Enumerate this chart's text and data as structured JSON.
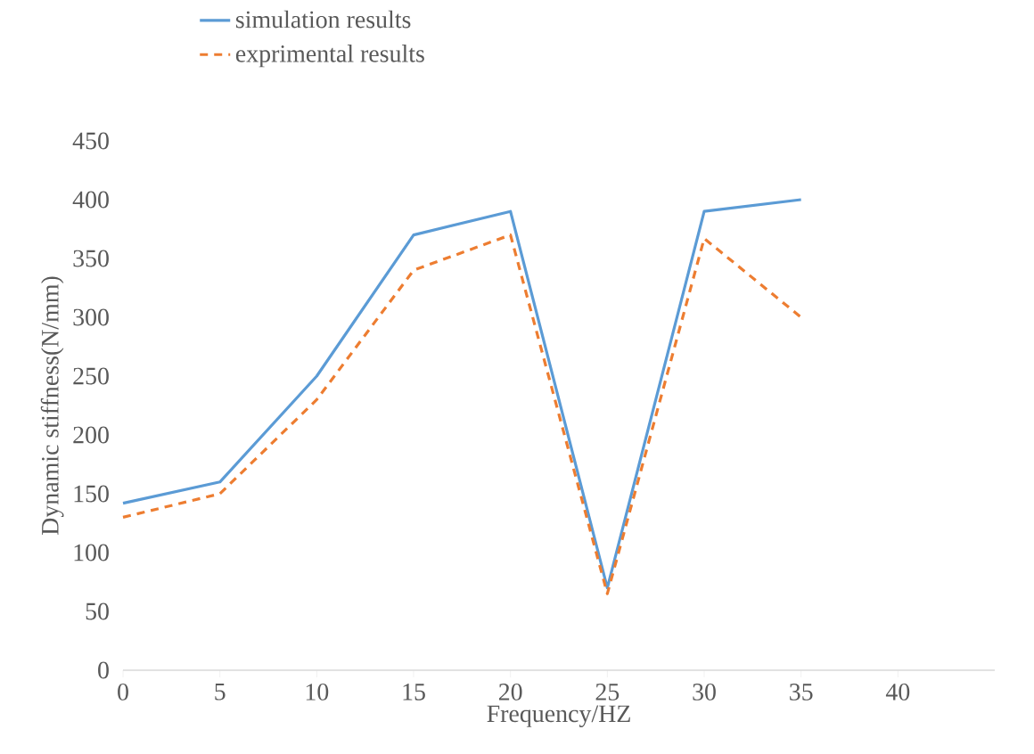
{
  "chart_data": {
    "type": "line",
    "xlabel": "Frequency/HZ",
    "ylabel": "Dynamic stiffness(N/mm)",
    "x": [
      0,
      5,
      10,
      15,
      20,
      25,
      30,
      35
    ],
    "series": [
      {
        "name": "simulation results",
        "color": "#5b9bd5",
        "line_style": "solid",
        "values": [
          142,
          160,
          250,
          370,
          390,
          70,
          390,
          400
        ]
      },
      {
        "name": "exprimental results",
        "color": "#ed7d31",
        "line_style": "dashed",
        "values": [
          130,
          150,
          230,
          340,
          370,
          65,
          367,
          300
        ]
      }
    ],
    "xlim": [
      0,
      45
    ],
    "xticks": [
      0,
      5,
      10,
      15,
      20,
      25,
      30,
      35,
      40
    ],
    "ylim": [
      0,
      450
    ],
    "yticks": [
      0,
      50,
      100,
      150,
      200,
      250,
      300,
      350,
      400,
      450
    ],
    "grid": false,
    "legend": "top left",
    "marker": "none"
  }
}
